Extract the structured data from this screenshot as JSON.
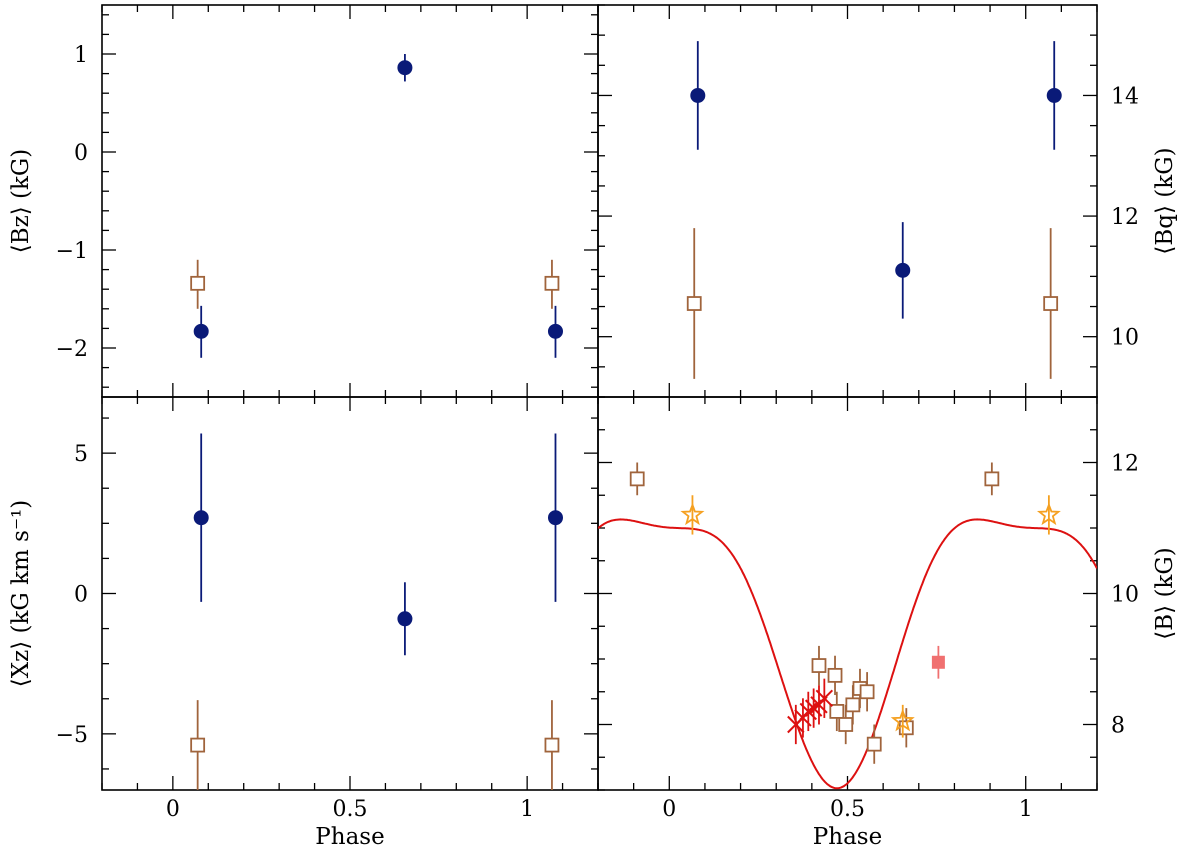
{
  "colors": {
    "navy": "#0a1a78",
    "brown": "#a0643c",
    "red": "#dd1111",
    "orange": "#f5a020",
    "pink": "#f07070"
  },
  "chart_data": [
    {
      "id": "bz",
      "type": "scatter",
      "panel": "top-left",
      "ylabel": "⟨Bz⟩ (kG)",
      "ylim": [
        -2.5,
        1.5
      ],
      "xlim": [
        -0.2,
        1.2
      ],
      "xticks": [
        "0",
        "0.5",
        "1"
      ],
      "yticks": [
        "−2",
        "−1",
        "0",
        "1"
      ],
      "series": [
        {
          "name": "filled-circles",
          "marker": "circle",
          "color": "navy",
          "points": [
            [
              0.08,
              -1.83,
              -2.1,
              -1.57
            ],
            [
              0.655,
              0.86,
              0.72,
              1.0
            ],
            [
              1.08,
              -1.83,
              -2.1,
              -1.57
            ]
          ]
        },
        {
          "name": "open-squares",
          "marker": "square-open",
          "color": "brown",
          "points": [
            [
              0.07,
              -1.34,
              -1.6,
              -1.1
            ],
            [
              1.07,
              -1.34,
              -1.6,
              -1.1
            ]
          ]
        }
      ]
    },
    {
      "id": "bq",
      "type": "scatter",
      "panel": "top-right",
      "ylabel": "⟨Bq⟩ (kG)",
      "ylim": [
        9.0,
        15.5
      ],
      "xlim": [
        -0.2,
        1.2
      ],
      "yticks": [
        "10",
        "12",
        "14"
      ],
      "series": [
        {
          "name": "filled-circles",
          "marker": "circle",
          "color": "navy",
          "points": [
            [
              0.08,
              14.0,
              13.1,
              14.9
            ],
            [
              0.655,
              11.1,
              10.3,
              11.9
            ],
            [
              1.08,
              14.0,
              13.1,
              14.9
            ]
          ]
        },
        {
          "name": "open-squares",
          "marker": "square-open",
          "color": "brown",
          "points": [
            [
              0.07,
              10.55,
              9.3,
              11.8
            ],
            [
              1.07,
              10.55,
              9.3,
              11.8
            ]
          ]
        }
      ]
    },
    {
      "id": "xz",
      "type": "scatter",
      "panel": "bottom-left",
      "ylabel": "⟨Xz⟩ (kG km s⁻¹)",
      "ylim": [
        -7.0,
        7.0
      ],
      "xlim": [
        -0.2,
        1.2
      ],
      "xlabel": "Phase",
      "xticks": [
        "0",
        "0.5",
        "1"
      ],
      "yticks": [
        "−5",
        "0",
        "5"
      ],
      "series": [
        {
          "name": "filled-circles",
          "marker": "circle",
          "color": "navy",
          "points": [
            [
              0.08,
              2.7,
              -0.3,
              5.7
            ],
            [
              0.655,
              -0.9,
              -2.2,
              0.4
            ],
            [
              1.08,
              2.7,
              -0.3,
              5.7
            ]
          ]
        },
        {
          "name": "open-squares",
          "marker": "square-open",
          "color": "brown",
          "points": [
            [
              0.07,
              -5.4,
              -7.0,
              -3.8
            ],
            [
              1.07,
              -5.4,
              -7.0,
              -3.8
            ]
          ]
        }
      ]
    },
    {
      "id": "b",
      "type": "scatter",
      "panel": "bottom-right",
      "ylabel": "⟨B⟩ (kG)",
      "ylim": [
        7.0,
        13.0
      ],
      "xlim": [
        -0.2,
        1.2
      ],
      "xlabel": "Phase",
      "xticks": [
        "0",
        "0.5",
        "1"
      ],
      "yticks": [
        "8",
        "10",
        "12"
      ],
      "fit_curve": {
        "color": "red",
        "mean": 9.625,
        "a1": 2.0,
        "p1": -0.035,
        "a2": 0.6,
        "p2": 0.225,
        "period": 1.0
      },
      "series": [
        {
          "name": "open-squares",
          "marker": "square-open",
          "color": "brown",
          "points": [
            [
              -0.09,
              11.75,
              11.5,
              12.0
            ],
            [
              0.42,
              8.9,
              8.6,
              9.2
            ],
            [
              0.465,
              8.75,
              8.45,
              9.05
            ],
            [
              0.47,
              8.2,
              7.9,
              8.5
            ],
            [
              0.495,
              8.0,
              7.7,
              8.3
            ],
            [
              0.515,
              8.3,
              8.0,
              8.6
            ],
            [
              0.535,
              8.55,
              8.25,
              8.85
            ],
            [
              0.555,
              8.5,
              8.2,
              8.8
            ],
            [
              0.575,
              7.7,
              7.4,
              8.0
            ],
            [
              0.665,
              7.95,
              7.65,
              8.25
            ],
            [
              0.905,
              11.75,
              11.5,
              12.0
            ]
          ]
        },
        {
          "name": "open-stars",
          "marker": "star-open",
          "color": "orange",
          "points": [
            [
              0.065,
              11.2,
              10.9,
              11.5
            ],
            [
              0.655,
              8.05,
              7.8,
              8.3
            ],
            [
              1.065,
              11.2,
              10.9,
              11.5
            ]
          ]
        },
        {
          "name": "crosses",
          "marker": "cross",
          "color": "red",
          "points": [
            [
              0.355,
              8.0,
              7.7,
              8.3
            ],
            [
              0.375,
              8.1,
              7.8,
              8.4
            ],
            [
              0.39,
              8.2,
              7.9,
              8.5
            ],
            [
              0.405,
              8.25,
              7.95,
              8.55
            ],
            [
              0.42,
              8.3,
              8.0,
              8.6
            ],
            [
              0.435,
              8.4,
              8.1,
              8.7
            ]
          ]
        },
        {
          "name": "filled-square",
          "marker": "square-filled",
          "color": "pink",
          "points": [
            [
              0.755,
              8.95,
              8.7,
              9.2
            ]
          ]
        }
      ]
    }
  ]
}
